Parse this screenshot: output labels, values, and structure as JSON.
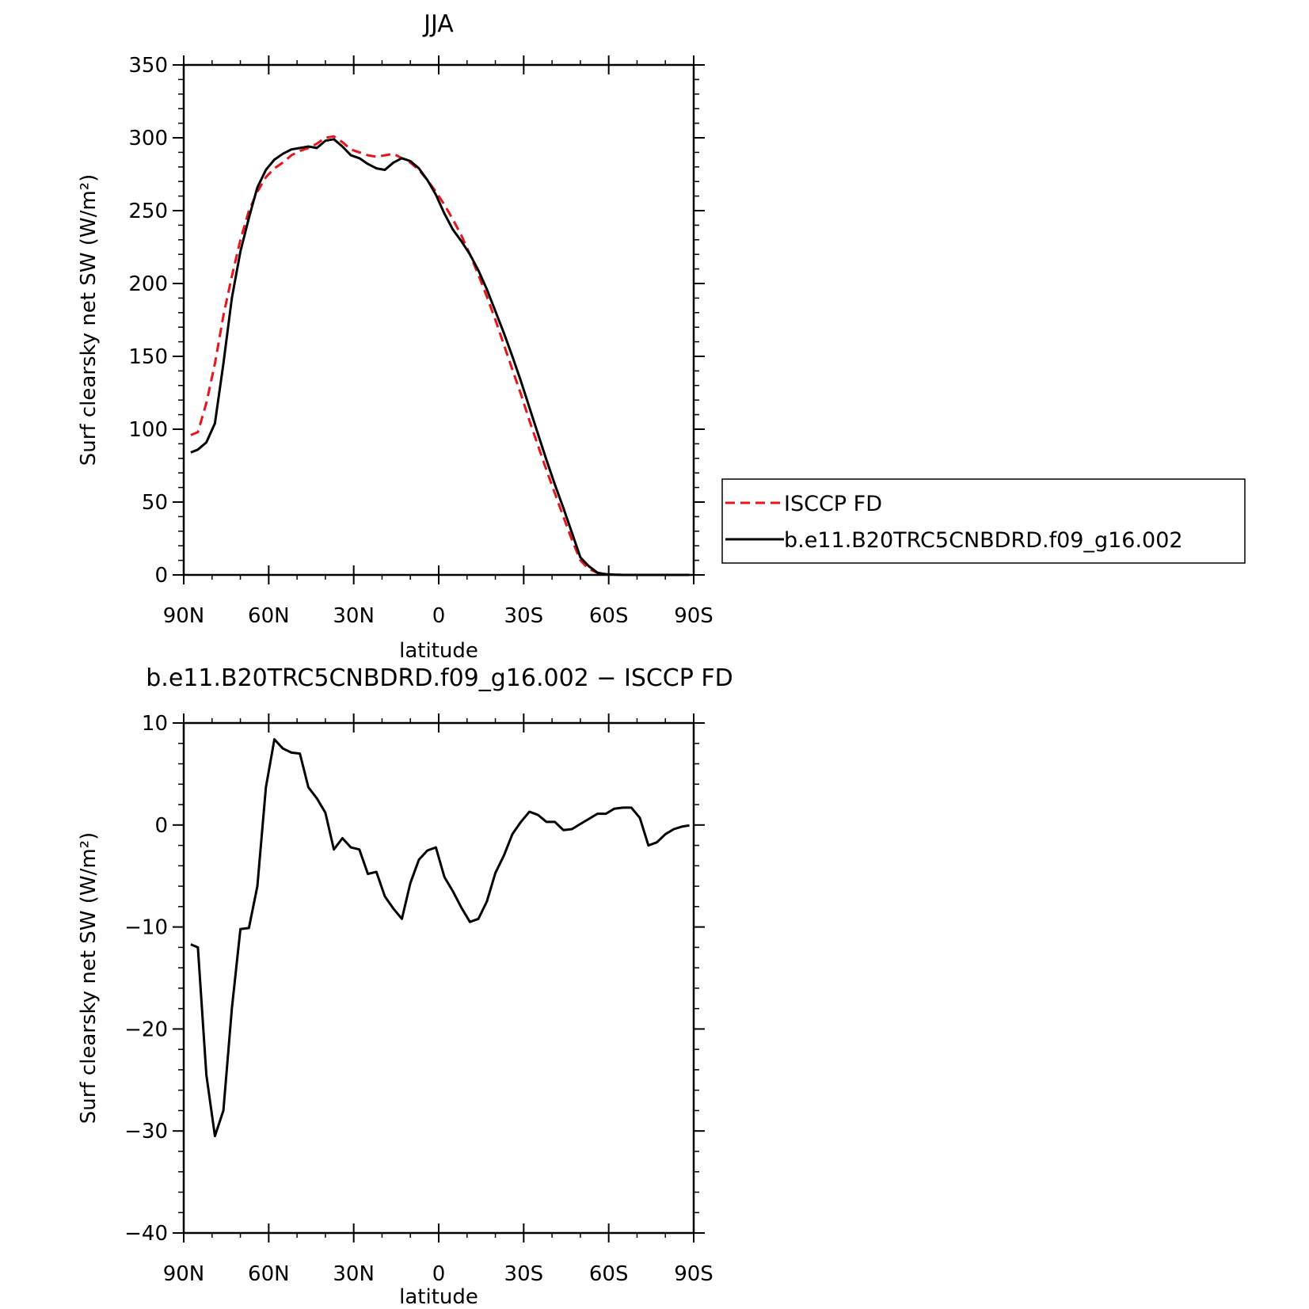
{
  "chart_data": [
    {
      "type": "line",
      "title": "JJA",
      "xlabel": "latitude",
      "ylabel": "Surf clearsky net SW (W/m²)",
      "xlim": [
        90,
        -90
      ],
      "ylim": [
        0,
        350
      ],
      "xticks": [
        {
          "value": 90,
          "label": "90N"
        },
        {
          "value": 60,
          "label": "60N"
        },
        {
          "value": 30,
          "label": "30N"
        },
        {
          "value": 0,
          "label": "0"
        },
        {
          "value": -30,
          "label": "30S"
        },
        {
          "value": -60,
          "label": "60S"
        },
        {
          "value": -90,
          "label": "90S"
        }
      ],
      "yticks": [
        0,
        50,
        100,
        150,
        200,
        250,
        300,
        350
      ],
      "legend": "right",
      "series": [
        {
          "name": "ISCCP FD",
          "color": "#e8141a",
          "dash": "dashed",
          "x": [
            87.5,
            85,
            82,
            79,
            76,
            73,
            70,
            67,
            64,
            61,
            58,
            55,
            52,
            49,
            46,
            43,
            40,
            37,
            34,
            31,
            28,
            25,
            22,
            19,
            16,
            13,
            10,
            7,
            4,
            1,
            -2,
            -5,
            -8,
            -11,
            -14,
            -17,
            -20,
            -23,
            -26,
            -29,
            -32,
            -35,
            -38,
            -41,
            -44,
            -47,
            -50,
            -53,
            -56,
            -59,
            -62,
            -65,
            -68,
            -71,
            -74,
            -77,
            -80,
            -83,
            -86,
            -88.5
          ],
          "y": [
            96,
            98,
            118,
            145,
            178,
            205,
            230,
            250,
            263,
            273,
            279,
            283,
            288,
            291,
            293,
            296,
            300,
            301,
            297,
            292,
            290,
            288,
            287,
            288,
            289,
            286,
            283,
            278,
            271,
            263,
            254,
            244,
            233,
            220,
            206,
            191,
            175,
            158,
            141,
            124,
            106,
            89,
            72,
            56,
            40,
            24,
            10,
            4,
            1.5,
            0.5,
            0.2,
            0,
            0,
            0,
            0,
            0,
            0,
            0,
            0,
            0
          ]
        },
        {
          "name": "b.e11.B20TRC5CNBDRD.f09_g16.002",
          "color": "#000000",
          "dash": "solid",
          "x": [
            87.5,
            85,
            82,
            79,
            76,
            73,
            70,
            67,
            64,
            61,
            58,
            55,
            52,
            49,
            46,
            43,
            40,
            37,
            34,
            31,
            28,
            25,
            22,
            19,
            16,
            13,
            10,
            7,
            4,
            1,
            -2,
            -5,
            -8,
            -11,
            -14,
            -17,
            -20,
            -23,
            -26,
            -29,
            -32,
            -35,
            -38,
            -41,
            -44,
            -47,
            -50,
            -53,
            -56,
            -59,
            -62,
            -65,
            -68,
            -71,
            -74,
            -77,
            -80,
            -83,
            -86,
            -88.5
          ],
          "y": [
            84,
            86,
            91,
            104,
            145,
            190,
            222,
            245,
            266,
            278,
            285,
            289,
            292,
            293,
            294,
            293,
            298,
            299,
            294,
            288,
            286,
            282,
            279,
            278,
            283,
            286,
            284,
            279,
            271,
            261,
            248,
            237,
            229,
            220,
            209,
            196,
            181,
            166,
            150,
            133,
            115,
            97,
            79,
            62,
            46,
            29,
            12,
            6,
            1.5,
            0.5,
            0.2,
            0,
            0,
            0,
            0,
            0,
            0,
            0,
            0,
            0
          ]
        }
      ]
    },
    {
      "type": "line",
      "title": "b.e11.B20TRC5CNBDRD.f09_g16.002 − ISCCP FD",
      "xlabel": "latitude",
      "ylabel": "Surf clearsky net SW (W/m²)",
      "xlim": [
        90,
        -90
      ],
      "ylim": [
        -40,
        10
      ],
      "xticks": [
        {
          "value": 90,
          "label": "90N"
        },
        {
          "value": 60,
          "label": "60N"
        },
        {
          "value": 30,
          "label": "30N"
        },
        {
          "value": 0,
          "label": "0"
        },
        {
          "value": -30,
          "label": "30S"
        },
        {
          "value": -60,
          "label": "60S"
        },
        {
          "value": -90,
          "label": "90S"
        }
      ],
      "yticks": [
        {
          "value": 10,
          "label": "10"
        },
        {
          "value": 0,
          "label": "0"
        },
        {
          "value": -10,
          "label": "−10"
        },
        {
          "value": -20,
          "label": "−20"
        },
        {
          "value": -30,
          "label": "−30"
        },
        {
          "value": -40,
          "label": "−40"
        }
      ],
      "series": [
        {
          "color": "#000000",
          "dash": "solid",
          "x": [
            87.5,
            85,
            82,
            79,
            76,
            73,
            70,
            67,
            64,
            61,
            58,
            55,
            52,
            49,
            46,
            43,
            40,
            37,
            34,
            31,
            28,
            25,
            22,
            19,
            16,
            13,
            10,
            7,
            4,
            1,
            -2,
            -5,
            -8,
            -11,
            -14,
            -17,
            -20,
            -23,
            -26,
            -29,
            -32,
            -35,
            -38,
            -41,
            -44,
            -47,
            -50,
            -53,
            -56,
            -59,
            -62,
            -65,
            -68,
            -71,
            -74,
            -77,
            -80,
            -83,
            -86,
            -88.5
          ],
          "y": [
            -11.7,
            -12.0,
            -24.5,
            -30.5,
            -28.0,
            -18.0,
            -10.2,
            -10.1,
            -6.0,
            3.7,
            8.4,
            7.5,
            7.1,
            7.0,
            3.7,
            2.6,
            1.2,
            -2.4,
            -1.3,
            -2.2,
            -2.4,
            -4.8,
            -4.6,
            -7.0,
            -8.2,
            -9.2,
            -5.7,
            -3.4,
            -2.5,
            -2.2,
            -5.1,
            -6.5,
            -8.1,
            -9.5,
            -9.2,
            -7.5,
            -4.7,
            -3.0,
            -0.9,
            0.3,
            1.3,
            1.0,
            0.3,
            0.3,
            -0.5,
            -0.4,
            0.1,
            0.6,
            1.1,
            1.1,
            1.6,
            1.7,
            1.7,
            0.7,
            -2.0,
            -1.7,
            -0.9,
            -0.4,
            -0.15,
            -0.05
          ]
        }
      ]
    }
  ]
}
